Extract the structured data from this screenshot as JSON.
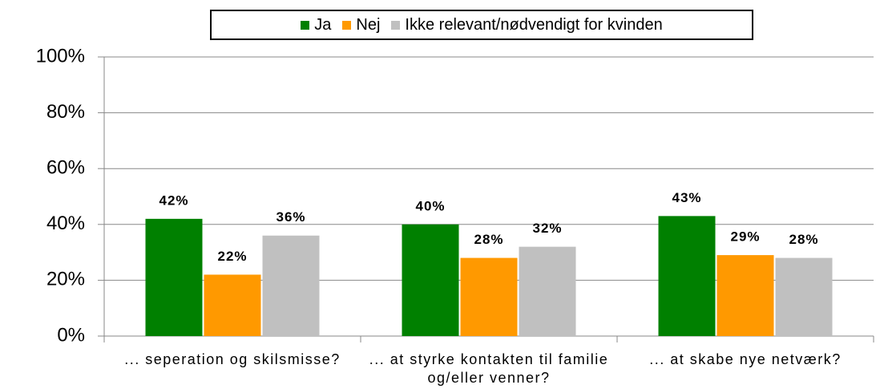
{
  "chart_data": {
    "type": "bar",
    "categories": [
      "... seperation og skilsmisse?",
      "... at styrke kontakten til familie og/eller venner?",
      "... at skabe nye netværk?"
    ],
    "series": [
      {
        "name": "Ja",
        "color": "#008000",
        "values": [
          42,
          40,
          43
        ],
        "value_labels": [
          "42%",
          "40%",
          "43%"
        ]
      },
      {
        "name": "Nej",
        "color": "#ff9900",
        "values": [
          22,
          28,
          29
        ],
        "value_labels": [
          "22%",
          "28%",
          "29%"
        ]
      },
      {
        "name": "Ikke relevant/nødvendigt for kvinden",
        "color": "#c0c0c0",
        "values": [
          36,
          32,
          28
        ],
        "value_labels": [
          "36%",
          "32%",
          "28%"
        ]
      }
    ],
    "ylim": [
      0,
      100
    ],
    "yticks": [
      {
        "value": 0,
        "label": "0%"
      },
      {
        "value": 20,
        "label": "20%"
      },
      {
        "value": 40,
        "label": "40%"
      },
      {
        "value": 60,
        "label": "60%"
      },
      {
        "value": 80,
        "label": "80%"
      },
      {
        "value": 100,
        "label": "100%"
      }
    ],
    "grid": true,
    "legend": "top"
  }
}
